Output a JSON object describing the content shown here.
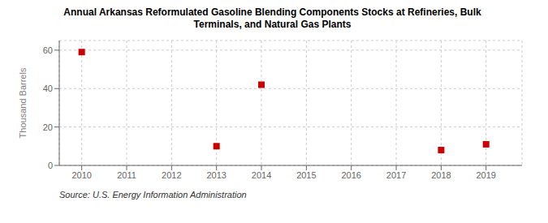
{
  "chart_data": {
    "type": "scatter",
    "title": "Annual Arkansas Reformulated Gasoline Blending Components Stocks at Refineries, Bulk\nTerminals, and Natural Gas Plants",
    "y_label": "Thousand Barrels",
    "source": "Source: U.S. Energy Information Administration",
    "x": [
      2010,
      2013,
      2014,
      2018,
      2019
    ],
    "values": [
      59,
      10,
      42,
      8,
      11
    ],
    "color": "#cc0000",
    "marker": "square",
    "xlim": [
      2009.5,
      2019.8
    ],
    "ylim": [
      0,
      65
    ],
    "xticks": [
      2010,
      2011,
      2012,
      2013,
      2014,
      2015,
      2016,
      2017,
      2018,
      2019
    ],
    "yticks": [
      0,
      20,
      40,
      60
    ],
    "grid": true
  }
}
